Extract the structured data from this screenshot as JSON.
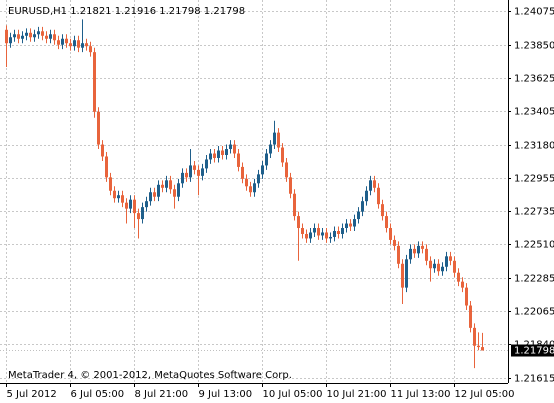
{
  "chart_data": {
    "type": "candlestick",
    "title": "EURUSD,H1  1.21821 1.21916 1.21798 1.21798",
    "annotation": "MetaTrader 4, © 2001-2012, MetaQuotes Software Corp.",
    "last_price": 1.21798,
    "up_color": "#1f5f8b",
    "down_color": "#e8643c",
    "grid": true,
    "ylim": [
      1.2158,
      1.2415
    ],
    "yticks": [
      1.24075,
      {
        "value": 1.2385,
        "label": "1.23850"
      },
      1.23625,
      1.23405,
      {
        "value": 1.2318,
        "label": "1.23180"
      },
      1.22955,
      1.22735,
      {
        "value": 1.2251,
        "label": "1.22510"
      },
      1.22285,
      1.22065,
      {
        "value": 1.2184,
        "label": "1.21840"
      },
      1.21615
    ],
    "categories": [
      "5 Jul 2012",
      null,
      null,
      null,
      null,
      null,
      null,
      null,
      null,
      null,
      null,
      null,
      null,
      null,
      null,
      null,
      "6 Jul 05:00",
      null,
      null,
      null,
      null,
      null,
      null,
      null,
      null,
      null,
      null,
      null,
      null,
      null,
      null,
      null,
      "8 Jul 21:00",
      null,
      null,
      null,
      null,
      null,
      null,
      null,
      null,
      null,
      null,
      null,
      null,
      null,
      null,
      null,
      "9 Jul 13:00",
      null,
      null,
      null,
      null,
      null,
      null,
      null,
      null,
      null,
      null,
      null,
      null,
      null,
      null,
      null,
      "10 Jul 05:00",
      null,
      null,
      null,
      null,
      null,
      null,
      null,
      null,
      null,
      null,
      null,
      null,
      null,
      null,
      null,
      "10 Jul 21:00",
      null,
      null,
      null,
      null,
      null,
      null,
      null,
      null,
      null,
      null,
      null,
      null,
      null,
      null,
      null,
      "11 Jul 13:00",
      null,
      null,
      null,
      null,
      null,
      null,
      null,
      null,
      null,
      null,
      null,
      null,
      null,
      null,
      null,
      "12 Jul 05:00",
      null,
      null,
      null,
      null,
      null,
      null,
      null
    ],
    "open": [
      1.2395,
      1.2386,
      1.239,
      1.2392,
      1.2389,
      1.2391,
      1.2393,
      1.239,
      1.2392,
      1.2394,
      1.2391,
      1.2389,
      1.2392,
      1.2388,
      1.2385,
      1.2389,
      1.2386,
      1.2384,
      1.2388,
      1.2383,
      1.2386,
      1.2384,
      1.238,
      1.234,
      1.2318,
      1.231,
      1.2296,
      1.2287,
      1.2282,
      1.2284,
      1.2279,
      1.2275,
      1.2281,
      1.2272,
      1.2268,
      1.2276,
      1.228,
      1.2286,
      1.2283,
      1.2291,
      1.2289,
      1.2294,
      1.2288,
      1.2283,
      1.2292,
      1.2299,
      1.2296,
      1.2304,
      1.2301,
      1.2297,
      1.2302,
      1.2308,
      1.2312,
      1.2309,
      1.2314,
      1.2311,
      1.2315,
      1.2318,
      1.2312,
      1.2303,
      1.2295,
      1.229,
      1.2286,
      1.2292,
      1.2298,
      1.2304,
      1.2312,
      1.2318,
      1.2326,
      1.2316,
      1.2306,
      1.2296,
      1.2285,
      1.227,
      1.2262,
      1.2258,
      1.2255,
      1.2259,
      1.2262,
      1.2257,
      1.2259,
      1.2255,
      1.2256,
      1.226,
      1.2258,
      1.2262,
      1.2265,
      1.2263,
      1.2268,
      1.2273,
      1.228,
      1.2287,
      1.2294,
      1.2289,
      1.2278,
      1.227,
      1.2262,
      1.2254,
      1.225,
      1.2238,
      1.2222,
      1.2241,
      1.2248,
      1.2245,
      1.225,
      1.2248,
      1.224,
      1.2235,
      1.2238,
      1.2233,
      1.2236,
      1.2243,
      1.224,
      1.2232,
      1.2226,
      1.2222,
      1.221,
      1.2195,
      1.2183,
      1.21821
    ],
    "high": [
      1.2398,
      1.2393,
      1.2395,
      1.2395,
      1.2394,
      1.2396,
      1.2396,
      1.2395,
      1.2397,
      1.2397,
      1.2394,
      1.2395,
      1.2395,
      1.2391,
      1.2392,
      1.2392,
      1.2389,
      1.2391,
      1.2391,
      1.2402,
      1.2389,
      1.2387,
      1.2383,
      1.2343,
      1.2321,
      1.2313,
      1.2299,
      1.229,
      1.2287,
      1.2287,
      1.2282,
      1.2284,
      1.2284,
      1.2275,
      1.2279,
      1.2283,
      1.2289,
      1.2289,
      1.2294,
      1.2294,
      1.2297,
      1.2297,
      1.2291,
      1.2295,
      1.2302,
      1.2302,
      1.2315,
      1.2307,
      1.2304,
      1.2305,
      1.2311,
      1.2315,
      1.2315,
      1.2317,
      1.2317,
      1.2318,
      1.2321,
      1.2321,
      1.2315,
      1.2306,
      1.2298,
      1.2293,
      1.2295,
      1.2301,
      1.2307,
      1.2315,
      1.2321,
      1.2334,
      1.2329,
      1.2319,
      1.2309,
      1.2299,
      1.2288,
      1.2273,
      1.2265,
      1.2261,
      1.2262,
      1.2265,
      1.2265,
      1.2262,
      1.2262,
      1.2259,
      1.2263,
      1.2263,
      1.2265,
      1.2268,
      1.2268,
      1.2271,
      1.2276,
      1.2283,
      1.229,
      1.2297,
      1.2297,
      1.2292,
      1.2281,
      1.2273,
      1.2265,
      1.2257,
      1.2253,
      1.2241,
      1.2244,
      1.2251,
      1.2251,
      1.2253,
      1.2253,
      1.2251,
      1.2243,
      1.2241,
      1.2241,
      1.2239,
      1.2246,
      1.2246,
      1.2243,
      1.2235,
      1.2229,
      1.2225,
      1.2213,
      1.2198,
      1.2192,
      1.21916
    ],
    "low": [
      1.237,
      1.2383,
      1.2387,
      1.2386,
      1.2386,
      1.2388,
      1.2387,
      1.2387,
      1.2389,
      1.2388,
      1.2386,
      1.2386,
      1.2385,
      1.2382,
      1.2382,
      1.2383,
      1.2381,
      1.2381,
      1.238,
      1.238,
      1.2381,
      1.2377,
      1.2336,
      1.2315,
      1.2307,
      1.2293,
      1.2284,
      1.2279,
      1.2279,
      1.2276,
      1.2265,
      1.2272,
      1.2262,
      1.2255,
      1.2265,
      1.2273,
      1.2277,
      1.228,
      1.228,
      1.2286,
      1.2286,
      1.2285,
      1.2275,
      1.228,
      1.2289,
      1.2293,
      1.2293,
      1.2298,
      1.2284,
      1.2294,
      1.2299,
      1.2305,
      1.2306,
      1.2306,
      1.2308,
      1.2308,
      1.2312,
      1.2309,
      1.23,
      1.2292,
      1.2287,
      1.2283,
      1.2283,
      1.2289,
      1.2295,
      1.2301,
      1.2309,
      1.2315,
      1.2313,
      1.2303,
      1.2293,
      1.2282,
      1.2267,
      1.224,
      1.2255,
      1.2252,
      1.2252,
      1.2256,
      1.2254,
      1.2254,
      1.2252,
      1.2252,
      1.2253,
      1.2255,
      1.2255,
      1.2259,
      1.226,
      1.226,
      1.2265,
      1.227,
      1.2277,
      1.2284,
      1.2286,
      1.2275,
      1.2267,
      1.2259,
      1.2251,
      1.2247,
      1.2235,
      1.2211,
      1.2219,
      1.2238,
      1.2242,
      1.2242,
      1.2245,
      1.2237,
      1.2226,
      1.2232,
      1.223,
      1.223,
      1.2233,
      1.2237,
      1.2229,
      1.2223,
      1.2219,
      1.2207,
      1.2192,
      1.2168,
      1.218,
      1.21798
    ],
    "close": [
      1.2386,
      1.239,
      1.2392,
      1.2389,
      1.2391,
      1.2393,
      1.239,
      1.2392,
      1.2394,
      1.2391,
      1.2389,
      1.2392,
      1.2388,
      1.2385,
      1.2389,
      1.2386,
      1.2384,
      1.2388,
      1.2383,
      1.2386,
      1.2384,
      1.238,
      1.234,
      1.2318,
      1.231,
      1.2296,
      1.2287,
      1.2282,
      1.2284,
      1.2279,
      1.2275,
      1.2281,
      1.2272,
      1.2268,
      1.2276,
      1.228,
      1.2286,
      1.2283,
      1.2291,
      1.2289,
      1.2294,
      1.2288,
      1.2283,
      1.2292,
      1.2299,
      1.2296,
      1.2304,
      1.2301,
      1.2297,
      1.2302,
      1.2308,
      1.2312,
      1.2309,
      1.2314,
      1.2311,
      1.2315,
      1.2318,
      1.2312,
      1.2303,
      1.2295,
      1.229,
      1.2286,
      1.2292,
      1.2298,
      1.2304,
      1.2312,
      1.2318,
      1.2326,
      1.2316,
      1.2306,
      1.2296,
      1.2285,
      1.227,
      1.2262,
      1.2258,
      1.2255,
      1.2259,
      1.2262,
      1.2257,
      1.2259,
      1.2255,
      1.2256,
      1.226,
      1.2258,
      1.2262,
      1.2265,
      1.2263,
      1.2268,
      1.2273,
      1.228,
      1.2287,
      1.2294,
      1.2289,
      1.2278,
      1.227,
      1.2262,
      1.2254,
      1.225,
      1.2238,
      1.2222,
      1.2241,
      1.2248,
      1.2245,
      1.225,
      1.2248,
      1.224,
      1.2235,
      1.2238,
      1.2233,
      1.2236,
      1.2243,
      1.224,
      1.2232,
      1.2226,
      1.2222,
      1.221,
      1.2195,
      1.2183,
      1.21821,
      1.21798
    ]
  }
}
